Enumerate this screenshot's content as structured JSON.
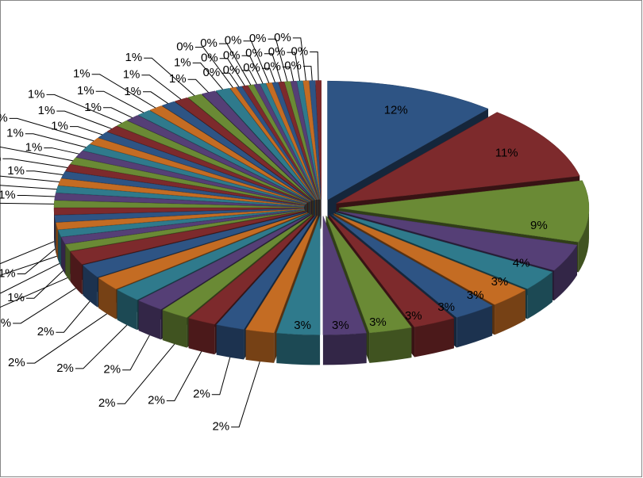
{
  "chart_data": {
    "type": "pie3d",
    "values": [
      12,
      11,
      9,
      4,
      3,
      3,
      3,
      3,
      3,
      3,
      3,
      2,
      2,
      2,
      2,
      2,
      2,
      2,
      2,
      2,
      1,
      1,
      1,
      1,
      1,
      1,
      1,
      1,
      1,
      1,
      1,
      1,
      1,
      1,
      1,
      1,
      1,
      1,
      1,
      1,
      1,
      1,
      1,
      1,
      1,
      1,
      1,
      0.4,
      0.4,
      0.4,
      0.4,
      0.4,
      0.4,
      0.4,
      0.4,
      0.4,
      0.4,
      0.4,
      0.4,
      0.4,
      0.4,
      0.4
    ],
    "value_labels": [
      "12%",
      "11%",
      "9%",
      "4%",
      "3%",
      "3%",
      "3%",
      "3%",
      "3%",
      "3%",
      "3%",
      "2%",
      "2%",
      "2%",
      "2%",
      "2%",
      "2%",
      "2%",
      "2%",
      "2%",
      "1%",
      "1%",
      "1%",
      "1%",
      "1%",
      "1%",
      "1%",
      "1%",
      "1%",
      "1%",
      "1%",
      "1%",
      "1%",
      "1%",
      "1%",
      "1%",
      "1%",
      "1%",
      "1%",
      "1%",
      "1%",
      "1%",
      "1%",
      "1%",
      "1%",
      "1%",
      "1%",
      "0%",
      "0%",
      "0%",
      "0%",
      "0%",
      "0%",
      "0%",
      "0%",
      "0%",
      "0%",
      "0%",
      "0%",
      "0%",
      "0%",
      "0%"
    ],
    "colors": [
      "#2e5484",
      "#7d2a2c",
      "#6a8a35",
      "#553f76",
      "#2f7a8c",
      "#c46c23"
    ],
    "exploded": true
  }
}
